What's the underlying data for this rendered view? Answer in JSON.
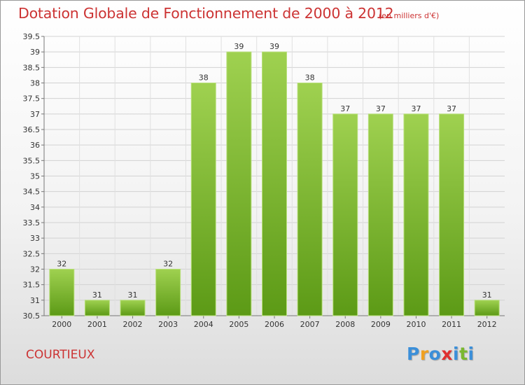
{
  "title": "Dotation Globale de Fonctionnement de 2000 à 2012",
  "subtitle": "(en milliers d'€)",
  "commune": "COURTIEUX",
  "logo": {
    "letters": [
      "P",
      "r",
      "o",
      "x",
      "i",
      "t",
      "i"
    ],
    "colors": [
      "#3b8fd9",
      "#f0a020",
      "#3b8fd9",
      "#e03030",
      "#3b8fd9",
      "#7ab830",
      "#3b8fd9"
    ]
  },
  "chart_data": {
    "type": "bar",
    "categories": [
      "2000",
      "2001",
      "2002",
      "2003",
      "2004",
      "2005",
      "2006",
      "2007",
      "2008",
      "2009",
      "2010",
      "2011",
      "2012"
    ],
    "values": [
      32,
      31,
      31,
      32,
      38,
      39,
      39,
      38,
      37,
      37,
      37,
      37,
      31
    ],
    "value_labels": [
      "32",
      "31",
      "31",
      "32",
      "38",
      "39",
      "39",
      "38",
      "37",
      "37",
      "37",
      "37",
      "31"
    ],
    "ylim": [
      30.5,
      39.5
    ],
    "yticks": [
      30.5,
      31,
      31.5,
      32,
      32.5,
      33,
      33.5,
      34,
      34.5,
      35,
      35.5,
      36,
      36.5,
      37,
      37.5,
      38,
      38.5,
      39,
      39.5
    ],
    "ytick_labels": [
      "30.5",
      "31",
      "31.5",
      "32",
      "32.5",
      "33",
      "33.5",
      "34",
      "34.5",
      "35",
      "35.5",
      "36",
      "36.5",
      "37",
      "37.5",
      "38",
      "38.5",
      "39",
      "39.5"
    ],
    "grid": true,
    "bar_color_top": "#9fd150",
    "bar_color_bottom": "#5c9a16",
    "title": "Dotation Globale de Fonctionnement de 2000 à 2012",
    "ylabel": "(en milliers d'€)"
  }
}
